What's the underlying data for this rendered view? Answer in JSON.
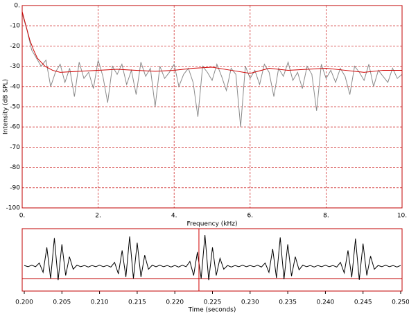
{
  "chart_data": [
    {
      "type": "line",
      "x_label": "Frequency (kHz)",
      "y_label": "Intensity (dB SPL)",
      "xlim": [
        0,
        10
      ],
      "ylim": [
        -100,
        0
      ],
      "grid": true,
      "grid_color": "#d03030",
      "frame_color": "#c00000",
      "xticks": [
        {
          "value": 0,
          "label": "0."
        },
        {
          "value": 2,
          "label": "2."
        },
        {
          "value": 4,
          "label": "4."
        },
        {
          "value": 6,
          "label": "6."
        },
        {
          "value": 8,
          "label": "8."
        },
        {
          "value": 10,
          "label": "10."
        }
      ],
      "yticks": [
        {
          "value": 0,
          "label": "0."
        },
        -10,
        -20,
        -30,
        -40,
        -50,
        -60,
        -70,
        -80,
        -90,
        -100
      ],
      "series": [
        {
          "color": "#8a8a8a",
          "x": [
            0,
            0.125,
            0.25,
            0.375,
            0.5,
            0.625,
            0.75,
            0.875,
            1,
            1.125,
            1.25,
            1.375,
            1.5,
            1.625,
            1.75,
            1.875,
            2,
            2.125,
            2.25,
            2.375,
            2.5,
            2.625,
            2.75,
            2.875,
            3,
            3.125,
            3.25,
            3.375,
            3.5,
            3.625,
            3.75,
            3.875,
            4,
            4.125,
            4.25,
            4.375,
            4.5,
            4.625,
            4.75,
            4.875,
            5,
            5.125,
            5.25,
            5.375,
            5.5,
            5.625,
            5.75,
            5.875,
            6,
            6.125,
            6.25,
            6.375,
            6.5,
            6.625,
            6.75,
            6.875,
            7,
            7.125,
            7.25,
            7.375,
            7.5,
            7.625,
            7.75,
            7.875,
            8,
            8.125,
            8.25,
            8.375,
            8.5,
            8.625,
            8.75,
            8.875,
            9,
            9.125,
            9.25,
            9.375,
            9.5,
            9.625,
            9.75,
            9.875,
            10
          ],
          "values": [
            -4,
            -12,
            -22,
            -26,
            -30,
            -27,
            -40,
            -33,
            -29,
            -38,
            -31,
            -45,
            -28,
            -36,
            -33,
            -41,
            -27,
            -35,
            -48,
            -30,
            -34,
            -29,
            -39,
            -32,
            -44,
            -28,
            -35,
            -31,
            -50,
            -30,
            -36,
            -33,
            -29,
            -40,
            -34,
            -31,
            -38,
            -55,
            -30,
            -33,
            -37,
            -29,
            -35,
            -42,
            -31,
            -34,
            -60,
            -30,
            -36,
            -32,
            -39,
            -29,
            -33,
            -45,
            -31,
            -35,
            -28,
            -37,
            -33,
            -41,
            -30,
            -34,
            -52,
            -29,
            -36,
            -32,
            -38,
            -31,
            -35,
            -44,
            -30,
            -33,
            -37,
            -29,
            -40,
            -32,
            -35,
            -38,
            -31,
            -36,
            -34
          ]
        },
        {
          "color": "#d00000",
          "x": [
            0,
            0.1,
            0.2,
            0.3,
            0.4,
            0.6,
            0.8,
            1,
            1.5,
            2,
            2.5,
            3,
            3.5,
            4,
            4.5,
            5,
            5.5,
            6,
            6.5,
            7,
            7.5,
            8,
            8.5,
            9,
            9.5,
            10
          ],
          "values": [
            -3,
            -10,
            -17,
            -22,
            -26,
            -30,
            -32,
            -33,
            -32.5,
            -32,
            -31.5,
            -32,
            -32.5,
            -32,
            -31,
            -30.5,
            -32,
            -33.5,
            -31,
            -32,
            -31.5,
            -31,
            -32,
            -33,
            -32,
            -32
          ]
        }
      ]
    },
    {
      "type": "line",
      "x_label": "Time (seconds)",
      "xlim": [
        0.2,
        0.25
      ],
      "ylim": [
        -0.8,
        1.2
      ],
      "grid": false,
      "frame_color": "#c00000",
      "cursor": 0.2232,
      "cursor_color": "#d00000",
      "xticks": [
        {
          "value": 0.2,
          "label": "0.200"
        },
        {
          "value": 0.205,
          "label": "0.205"
        },
        {
          "value": 0.21,
          "label": "0.210"
        },
        {
          "value": 0.215,
          "label": "0.215"
        },
        {
          "value": 0.22,
          "label": "0.220"
        },
        {
          "value": 0.225,
          "label": "0.225"
        },
        {
          "value": 0.23,
          "label": "0.230"
        },
        {
          "value": 0.235,
          "label": "0.235"
        },
        {
          "value": 0.24,
          "label": "0.240"
        },
        {
          "value": 0.245,
          "label": "0.245"
        },
        {
          "value": 0.25,
          "label": "0.250"
        }
      ],
      "series": [
        {
          "color": "#000000",
          "x": [
            0.2,
            0.2005,
            0.201,
            0.2015,
            0.202,
            0.2025,
            0.203,
            0.2035,
            0.204,
            0.2045,
            0.205,
            0.2055,
            0.206,
            0.2065,
            0.207,
            0.2075,
            0.208,
            0.2085,
            0.209,
            0.2095,
            0.21,
            0.2105,
            0.211,
            0.2115,
            0.212,
            0.2125,
            0.213,
            0.2135,
            0.214,
            0.2145,
            0.215,
            0.2155,
            0.216,
            0.2165,
            0.217,
            0.2175,
            0.218,
            0.2185,
            0.219,
            0.2195,
            0.22,
            0.2205,
            0.221,
            0.2215,
            0.222,
            0.2225,
            0.223,
            0.2235,
            0.224,
            0.2245,
            0.225,
            0.2255,
            0.226,
            0.2265,
            0.227,
            0.2275,
            0.228,
            0.2285,
            0.229,
            0.2295,
            0.23,
            0.2305,
            0.231,
            0.2315,
            0.232,
            0.2325,
            0.233,
            0.2335,
            0.234,
            0.2345,
            0.235,
            0.2355,
            0.236,
            0.2365,
            0.237,
            0.2375,
            0.238,
            0.2385,
            0.239,
            0.2395,
            0.24,
            0.2405,
            0.241,
            0.2415,
            0.242,
            0.2425,
            0.243,
            0.2435,
            0.244,
            0.2445,
            0.245,
            0.2455,
            0.246,
            0.2465,
            0.247,
            0.2475,
            0.248,
            0.2485,
            0.249,
            0.2495,
            0.25
          ],
          "values": [
            0.02,
            -0.02,
            0.03,
            -0.02,
            0.1,
            -0.2,
            0.6,
            -0.4,
            0.9,
            -0.45,
            0.7,
            -0.3,
            0.3,
            -0.1,
            0.03,
            -0.02,
            0.02,
            -0.03,
            0.02,
            -0.02,
            0.03,
            -0.02,
            0.02,
            -0.03,
            0.12,
            -0.25,
            0.5,
            -0.35,
            0.95,
            -0.4,
            0.75,
            -0.35,
            0.35,
            -0.1,
            0.03,
            -0.02,
            0.03,
            -0.02,
            0.02,
            -0.03,
            0.02,
            -0.03,
            0.03,
            -0.02,
            0.15,
            -0.3,
            0.45,
            -0.4,
            1.0,
            -0.45,
            0.6,
            -0.3,
            0.25,
            -0.1,
            0.02,
            -0.03,
            0.02,
            -0.02,
            0.03,
            -0.02,
            0.02,
            -0.02,
            0.03,
            -0.03,
            0.1,
            -0.2,
            0.55,
            -0.38,
            0.92,
            -0.42,
            0.7,
            -0.32,
            0.3,
            -0.12,
            0.03,
            -0.02,
            0.02,
            -0.03,
            0.02,
            -0.02,
            0.03,
            -0.02,
            0.02,
            -0.03,
            0.12,
            -0.22,
            0.5,
            -0.36,
            0.88,
            -0.44,
            0.72,
            -0.3,
            0.32,
            -0.1,
            0.02,
            -0.02,
            0.03,
            -0.02,
            0.02,
            -0.03,
            0.02
          ]
        }
      ]
    }
  ]
}
